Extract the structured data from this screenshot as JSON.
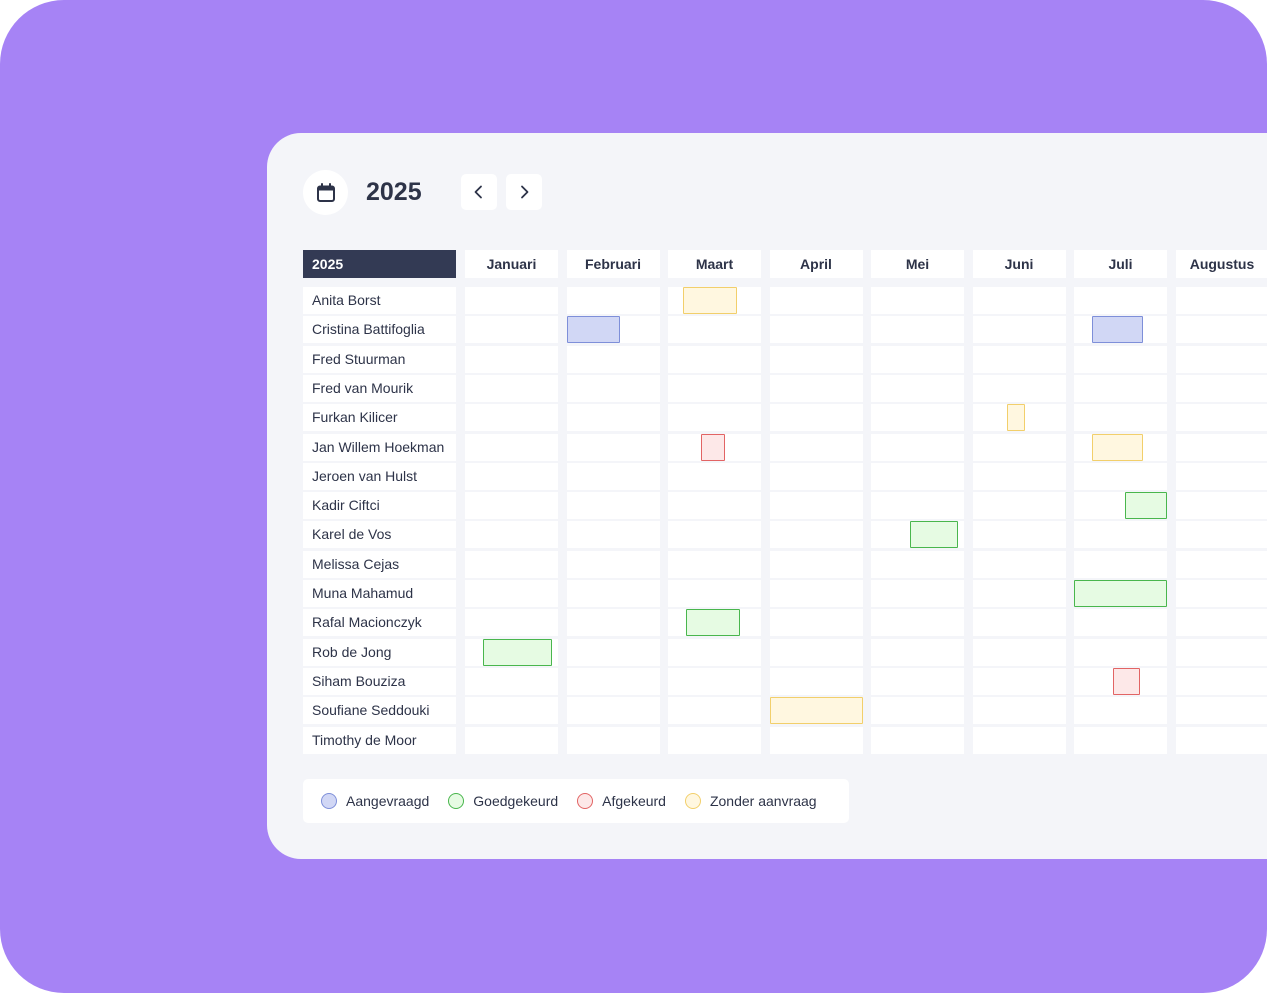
{
  "header": {
    "year": "2025"
  },
  "table": {
    "year_label": "2025",
    "months": [
      "Januari",
      "Februari",
      "Maart",
      "April",
      "Mei",
      "Juni",
      "Juli",
      "Augustus"
    ],
    "employees": [
      "Anita Borst",
      "Cristina Battifoglia",
      "Fred Stuurman",
      "Fred van Mourik",
      "Furkan Kilicer",
      "Jan Willem Hoekman",
      "Jeroen van Hulst",
      "Kadir Ciftci",
      "Karel de Vos",
      "Melissa Cejas",
      "Muna Mahamud",
      "Rafal Macionczyk",
      "Rob de Jong",
      "Siham Bouziza",
      "Soufiane Seddouki",
      "Timothy de Moor"
    ]
  },
  "leave_periods": [
    {
      "employee": 0,
      "status": "zonder",
      "start": "2025-03-06",
      "end": "2025-03-23"
    },
    {
      "employee": 1,
      "status": "aangevraagd",
      "start": "2025-02-01",
      "end": "2025-02-16"
    },
    {
      "employee": 1,
      "status": "aangevraagd",
      "start": "2025-07-07",
      "end": "2025-07-23"
    },
    {
      "employee": 4,
      "status": "zonder",
      "start": "2025-06-12",
      "end": "2025-06-17"
    },
    {
      "employee": 5,
      "status": "afgekeurd",
      "start": "2025-03-12",
      "end": "2025-03-19"
    },
    {
      "employee": 5,
      "status": "zonder",
      "start": "2025-07-07",
      "end": "2025-07-23"
    },
    {
      "employee": 7,
      "status": "goedgekeurd",
      "start": "2025-07-18",
      "end": "2025-07-31"
    },
    {
      "employee": 8,
      "status": "goedgekeurd",
      "start": "2025-05-14",
      "end": "2025-05-29"
    },
    {
      "employee": 10,
      "status": "goedgekeurd",
      "start": "2025-07-01",
      "end": "2025-07-31"
    },
    {
      "employee": 11,
      "status": "goedgekeurd",
      "start": "2025-03-07",
      "end": "2025-03-24"
    },
    {
      "employee": 12,
      "status": "goedgekeurd",
      "start": "2025-01-07",
      "end": "2025-01-29"
    },
    {
      "employee": 13,
      "status": "afgekeurd",
      "start": "2025-07-14",
      "end": "2025-07-22"
    },
    {
      "employee": 14,
      "status": "zonder",
      "start": "2025-04-01",
      "end": "2025-04-30"
    }
  ],
  "legend": [
    {
      "key": "aangevraagd",
      "label": "Aangevraagd",
      "color": "#d1d7f5",
      "border": "#7e8fd9"
    },
    {
      "key": "goedgekeurd",
      "label": "Goedgekeurd",
      "color": "#e6fbe3",
      "border": "#49b64d"
    },
    {
      "key": "afgekeurd",
      "label": "Afgekeurd",
      "color": "#fde8e8",
      "border": "#e26464"
    },
    {
      "key": "zonder",
      "label": "Zonder aanvraag",
      "color": "#fff7e0",
      "border": "#f2cf6b"
    }
  ],
  "icons": {
    "calendar": "calendar-icon",
    "prev": "chevron-left-icon",
    "next": "chevron-right-icon"
  }
}
